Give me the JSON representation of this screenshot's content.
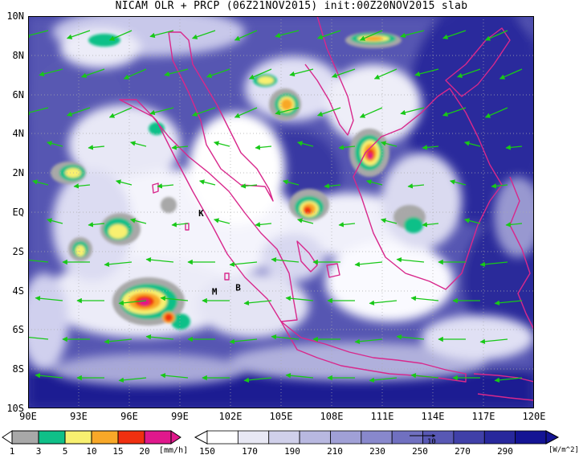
{
  "title": "NICAM OLR + PRCP (06Z21NOV2015) init:00Z20NOV2015 slab",
  "lat_labels": [
    "10N",
    "8N",
    "6N",
    "4N",
    "2N",
    "EQ",
    "2S",
    "4S",
    "6S",
    "8S",
    "10S"
  ],
  "lon_labels": [
    "90E",
    "93E",
    "96E",
    "99E",
    "102E",
    "105E",
    "108E",
    "111E",
    "114E",
    "117E",
    "120E"
  ],
  "stations": [
    {
      "label": "K",
      "lon": 100.1,
      "lat": -0.2
    },
    {
      "label": "M",
      "lon": 100.9,
      "lat": -4.2
    },
    {
      "label": "B",
      "lon": 102.3,
      "lat": -4.0
    }
  ],
  "prcp_colorbar": {
    "labels": [
      "1",
      "3",
      "5",
      "10",
      "15",
      "20"
    ],
    "unit": "[mm/h]",
    "colors": [
      "#a8a8a8",
      "#10c088",
      "#f8f070",
      "#f8a828",
      "#f03010",
      "#e0188c"
    ]
  },
  "olr_colorbar": {
    "labels": [
      "150",
      "170",
      "190",
      "210",
      "230",
      "250",
      "270",
      "290"
    ],
    "unit": "[W/m^2]",
    "colors": [
      "#ffffff",
      "#e8e8f4",
      "#d0d0ea",
      "#b8b8e0",
      "#a0a0d6",
      "#8888cc",
      "#7070c0",
      "#5858b4",
      "#4040a8",
      "#28289c",
      "#141494"
    ]
  },
  "vector_ref_label": "10",
  "colors": {
    "coast": "#d8288c",
    "vector": "#18c818",
    "olr_dark": "#2a2a9a",
    "olr_mid": "#7070c4",
    "olr_light": "#c8c8ec"
  }
}
